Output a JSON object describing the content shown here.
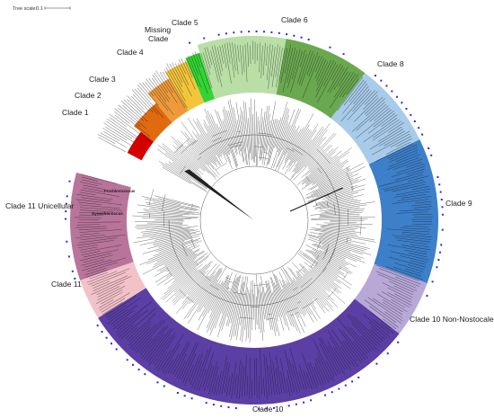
{
  "figure": {
    "scale_bar": {
      "label": "Tree scale:",
      "value": "0.1"
    },
    "clades": [
      {
        "id": "clade-1",
        "label": "Clade 1",
        "color": "#d40000",
        "start": -62,
        "end": -52
      },
      {
        "id": "clade-2",
        "label": "Clade 2",
        "color": "#e06a10",
        "start": -52,
        "end": -40
      },
      {
        "id": "clade-3",
        "label": "Clade 3",
        "color": "#ef9a3a",
        "start": -40,
        "end": -31
      },
      {
        "id": "clade-4",
        "label": "Clade 4",
        "color": "#f3c53a",
        "start": -31,
        "end": -23
      },
      {
        "id": "missing-clade",
        "label": "Missing Clade",
        "color": "#33d433",
        "start": -23,
        "end": -18
      },
      {
        "id": "clade-5",
        "label": "Clade 5",
        "color": "#b9dfa6",
        "start": -18,
        "end": 10
      },
      {
        "id": "clade-6",
        "label": "Clade 6",
        "color": "#6aa84f",
        "start": 10,
        "end": 37
      },
      {
        "id": "clade-8",
        "label": "Clade 8",
        "color": "#a8cbe9",
        "start": 37,
        "end": 64
      },
      {
        "id": "clade-9",
        "label": "Clade 9",
        "color": "#3d7fc9",
        "start": 64,
        "end": 110
      },
      {
        "id": "clade-10-non-nostocales",
        "label": "Clade 10 Non-Nostocales",
        "color": "#b8a8d8",
        "start": 110,
        "end": 128
      },
      {
        "id": "clade-10",
        "label": "Clade 10",
        "color": "#5b3fa5",
        "start": 128,
        "end": 238
      },
      {
        "id": "clade-11",
        "label": "Clade 11",
        "color": "#f2c2c8",
        "start": 238,
        "end": 251
      },
      {
        "id": "clade-11-unicellular",
        "label": "Clade 11 Unicellular",
        "color": "#b8749a",
        "start": 251,
        "end": 285
      }
    ],
    "highlighted_leaf_labels": [
      "Synechococcus",
      "Prochlorococcus"
    ]
  }
}
